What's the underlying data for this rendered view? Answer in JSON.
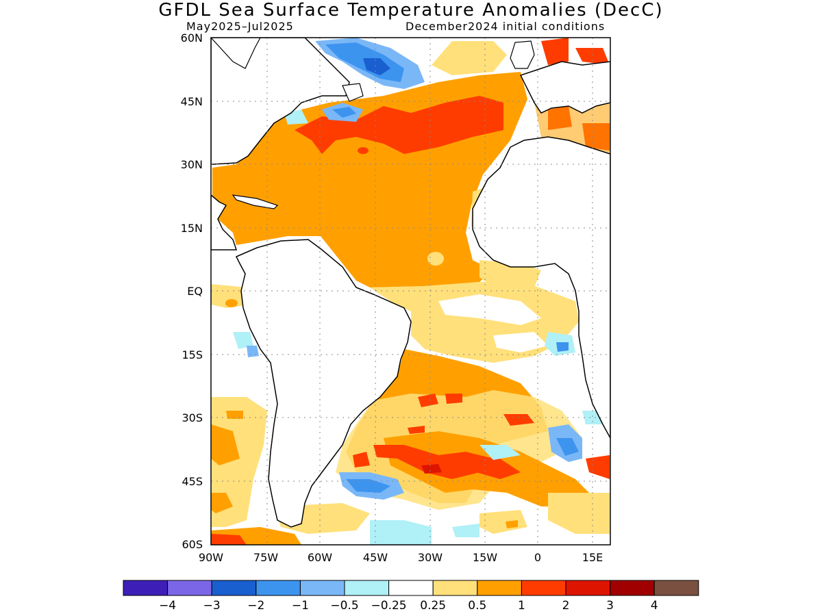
{
  "title": "GFDL Sea Surface Temperature Anomalies (DecC)",
  "subtitle_left": "May2025–Jul2025",
  "subtitle_right": "December2024 initial conditions",
  "axes": {
    "lat_labels": [
      "60N",
      "45N",
      "30N",
      "15N",
      "EQ",
      "15S",
      "30S",
      "45S",
      "60S"
    ],
    "lon_labels": [
      "90W",
      "75W",
      "60W",
      "45W",
      "30W",
      "15W",
      "0",
      "15E"
    ]
  },
  "colorbar": {
    "colors": [
      "#3d1fb8",
      "#7b66e8",
      "#1a5fcf",
      "#3d94ef",
      "#7ab7f7",
      "#b0f0f7",
      "#ffffff",
      "#ffe07a",
      "#ffa000",
      "#ff3c00",
      "#dd1400",
      "#a00000",
      "#7a5040"
    ],
    "labels": [
      "−4",
      "−3",
      "−2",
      "−1",
      "−0.5",
      "−0.25",
      "0.25",
      "0.5",
      "1",
      "2",
      "3",
      "4"
    ]
  },
  "map_legend": {
    "region": "Atlantic Ocean",
    "lat_range": [
      "60S",
      "60N"
    ],
    "lon_range": [
      "90W",
      "17E"
    ]
  }
}
